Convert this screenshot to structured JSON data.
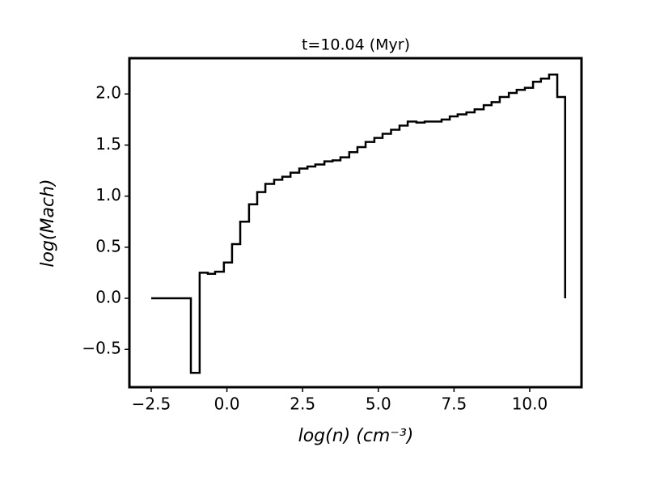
{
  "chart_data": {
    "type": "line",
    "drawstyle": "steps-post",
    "title": "t=10.04 (Myr)",
    "x_label": "log(n) (cm⁻³)",
    "y_label": "log(Mach)",
    "x": [
      -2.5,
      -1.19,
      -0.9,
      -0.63,
      -0.39,
      -0.1,
      0.17,
      0.44,
      0.73,
      1.0,
      1.27,
      1.56,
      1.83,
      2.1,
      2.39,
      2.66,
      2.92,
      3.22,
      3.49,
      3.75,
      4.04,
      4.31,
      4.58,
      4.87,
      5.14,
      5.42,
      5.7,
      5.97,
      6.26,
      6.53,
      6.8,
      7.09,
      7.36,
      7.62,
      7.91,
      8.18,
      8.48,
      8.74,
      9.01,
      9.31,
      9.57,
      9.84,
      10.11,
      10.37,
      10.64,
      10.91,
      11.17
    ],
    "series": [
      {
        "color": "#000000",
        "values": [
          0.0,
          -0.73,
          0.25,
          0.24,
          0.26,
          0.35,
          0.53,
          0.75,
          0.92,
          1.04,
          1.12,
          1.16,
          1.19,
          1.23,
          1.27,
          1.29,
          1.31,
          1.34,
          1.35,
          1.38,
          1.43,
          1.48,
          1.53,
          1.57,
          1.61,
          1.65,
          1.69,
          1.73,
          1.72,
          1.73,
          1.73,
          1.75,
          1.78,
          1.8,
          1.82,
          1.85,
          1.89,
          1.92,
          1.97,
          2.01,
          2.04,
          2.06,
          2.12,
          2.15,
          2.19,
          1.97,
          0.0
        ]
      }
    ],
    "xlim": [
      -3.22,
      11.71
    ],
    "ylim": [
      -0.87,
      2.35
    ],
    "xticks": [
      {
        "value": -2.5,
        "label": "−2.5"
      },
      {
        "value": 0,
        "label": "0.0"
      },
      {
        "value": 2.5,
        "label": "2.5"
      },
      {
        "value": 5,
        "label": "5.0"
      },
      {
        "value": 7.5,
        "label": "7.5"
      },
      {
        "value": 10,
        "label": "10.0"
      }
    ],
    "yticks": [
      {
        "value": -0.5,
        "label": "−0.5"
      },
      {
        "value": 0,
        "label": "0.0"
      },
      {
        "value": 0.5,
        "label": "0.5"
      },
      {
        "value": 1,
        "label": "1.0"
      },
      {
        "value": 1.5,
        "label": "1.5"
      },
      {
        "value": 2,
        "label": "2.0"
      }
    ],
    "grid": false
  }
}
